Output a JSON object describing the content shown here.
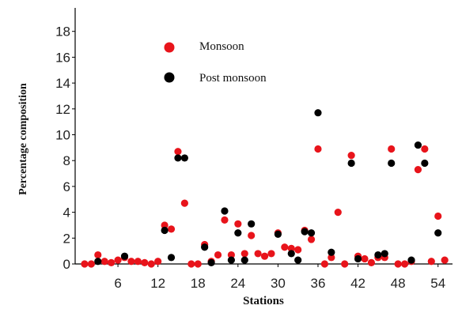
{
  "chart_data": {
    "type": "scatter",
    "xlabel": "Stations",
    "ylabel": "Percentage composition",
    "xlim": [
      0,
      55
    ],
    "ylim": [
      0,
      20
    ],
    "xticks": [
      6,
      12,
      18,
      24,
      30,
      36,
      42,
      48,
      54
    ],
    "yticks": [
      0,
      2,
      4,
      6,
      8,
      10,
      12,
      14,
      16,
      18
    ],
    "grid": false,
    "legend_position": "top-center",
    "series": [
      {
        "name": "Monsoon",
        "color": "#e8141b",
        "points": [
          [
            1,
            0.0
          ],
          [
            2,
            0.0
          ],
          [
            3,
            0.7
          ],
          [
            4,
            0.2
          ],
          [
            5,
            0.1
          ],
          [
            6,
            0.3
          ],
          [
            7,
            0.5
          ],
          [
            8,
            0.2
          ],
          [
            9,
            0.2
          ],
          [
            10,
            0.1
          ],
          [
            11,
            0.0
          ],
          [
            12,
            0.2
          ],
          [
            13,
            3.0
          ],
          [
            14,
            2.7
          ],
          [
            15,
            8.7
          ],
          [
            16,
            4.7
          ],
          [
            17,
            0.0
          ],
          [
            18,
            0.0
          ],
          [
            19,
            1.5
          ],
          [
            20,
            0.2
          ],
          [
            21,
            0.7
          ],
          [
            22,
            3.4
          ],
          [
            23,
            0.7
          ],
          [
            24,
            3.1
          ],
          [
            25,
            0.8
          ],
          [
            26,
            2.2
          ],
          [
            27,
            0.8
          ],
          [
            28,
            0.6
          ],
          [
            29,
            0.8
          ],
          [
            30,
            2.4
          ],
          [
            31,
            1.3
          ],
          [
            32,
            1.2
          ],
          [
            33,
            1.1
          ],
          [
            34,
            2.6
          ],
          [
            35,
            1.9
          ],
          [
            36,
            8.9
          ],
          [
            37,
            0.0
          ],
          [
            38,
            0.5
          ],
          [
            39,
            4.0
          ],
          [
            40,
            0.0
          ],
          [
            41,
            8.4
          ],
          [
            42,
            0.6
          ],
          [
            43,
            0.4
          ],
          [
            44,
            0.1
          ],
          [
            45,
            0.5
          ],
          [
            46,
            0.5
          ],
          [
            47,
            8.9
          ],
          [
            48,
            0.0
          ],
          [
            49,
            0.0
          ],
          [
            50,
            0.2
          ],
          [
            51,
            7.3
          ],
          [
            52,
            8.9
          ],
          [
            53,
            0.2
          ],
          [
            54,
            3.7
          ],
          [
            55,
            0.3
          ]
        ]
      },
      {
        "name": "Post monsoon",
        "color": "#000000",
        "points": [
          [
            3,
            0.2
          ],
          [
            7,
            0.6
          ],
          [
            13,
            2.6
          ],
          [
            14,
            0.5
          ],
          [
            15,
            8.2
          ],
          [
            16,
            8.2
          ],
          [
            19,
            1.3
          ],
          [
            20,
            0.1
          ],
          [
            22,
            4.1
          ],
          [
            23,
            0.3
          ],
          [
            24,
            2.4
          ],
          [
            25,
            0.3
          ],
          [
            26,
            3.1
          ],
          [
            30,
            2.3
          ],
          [
            32,
            0.8
          ],
          [
            33,
            0.3
          ],
          [
            34,
            2.5
          ],
          [
            35,
            2.4
          ],
          [
            36,
            11.7
          ],
          [
            38,
            0.9
          ],
          [
            41,
            7.8
          ],
          [
            42,
            0.4
          ],
          [
            45,
            0.7
          ],
          [
            46,
            0.8
          ],
          [
            47,
            7.8
          ],
          [
            50,
            0.3
          ],
          [
            51,
            9.2
          ],
          [
            52,
            7.8
          ],
          [
            54,
            2.4
          ]
        ]
      }
    ]
  }
}
